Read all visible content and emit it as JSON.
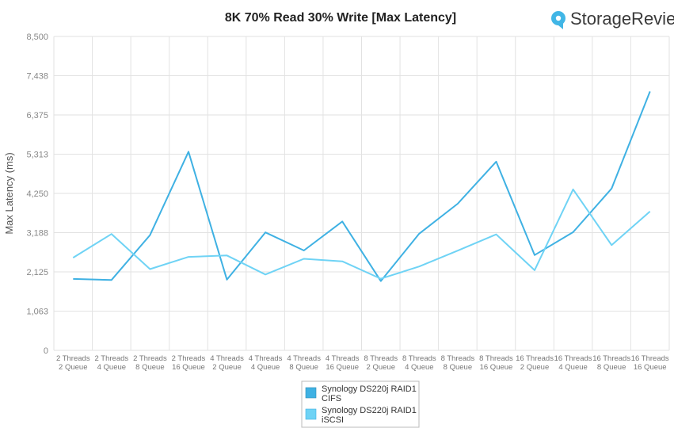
{
  "brand": {
    "name": "StorageReview",
    "logo_icon": "storagereview-logo-icon",
    "accent": "#41b6e6"
  },
  "chart_data": {
    "type": "line",
    "title": "8K 70% Read 30% Write [Max Latency]",
    "xlabel": "",
    "ylabel": "Max Latency (ms)",
    "ylim": [
      0,
      8500
    ],
    "yticks": [
      "0",
      "1,063",
      "2,125",
      "3,188",
      "4,250",
      "5,313",
      "6,375",
      "7,438",
      "8,500"
    ],
    "ytick_values": [
      0,
      1063,
      2125,
      3188,
      4250,
      5313,
      6375,
      7438,
      8500
    ],
    "grid": true,
    "legend_position": "bottom",
    "categories": [
      [
        "2 Threads",
        "2 Queue"
      ],
      [
        "2 Threads",
        "4 Queue"
      ],
      [
        "2 Threads",
        "8 Queue"
      ],
      [
        "2 Threads",
        "16 Queue"
      ],
      [
        "4 Threads",
        "2 Queue"
      ],
      [
        "4 Threads",
        "4 Queue"
      ],
      [
        "4 Threads",
        "8 Queue"
      ],
      [
        "4 Threads",
        "16 Queue"
      ],
      [
        "8 Threads",
        "2 Queue"
      ],
      [
        "8 Threads",
        "4 Queue"
      ],
      [
        "8 Threads",
        "8 Queue"
      ],
      [
        "8 Threads",
        "16 Queue"
      ],
      [
        "16 Threads",
        "2 Queue"
      ],
      [
        "16 Threads",
        "4 Queue"
      ],
      [
        "16 Threads",
        "8 Queue"
      ],
      [
        "16 Threads",
        "16 Queue"
      ]
    ],
    "series": [
      {
        "name": [
          "Synology DS220j RAID1",
          "CIFS"
        ],
        "color": "#3fb1e3",
        "values": [
          1935,
          1905,
          3120,
          5380,
          1915,
          3195,
          2705,
          3490,
          1875,
          3160,
          3970,
          5110,
          2580,
          3200,
          4380,
          7010
        ]
      },
      {
        "name": [
          "Synology DS220j RAID1",
          "iSCSI"
        ],
        "color": "#6fd3f5",
        "values": [
          2510,
          3150,
          2200,
          2530,
          2570,
          2055,
          2480,
          2410,
          1940,
          2270,
          2700,
          3140,
          2170,
          4360,
          2850,
          3760
        ]
      }
    ]
  }
}
